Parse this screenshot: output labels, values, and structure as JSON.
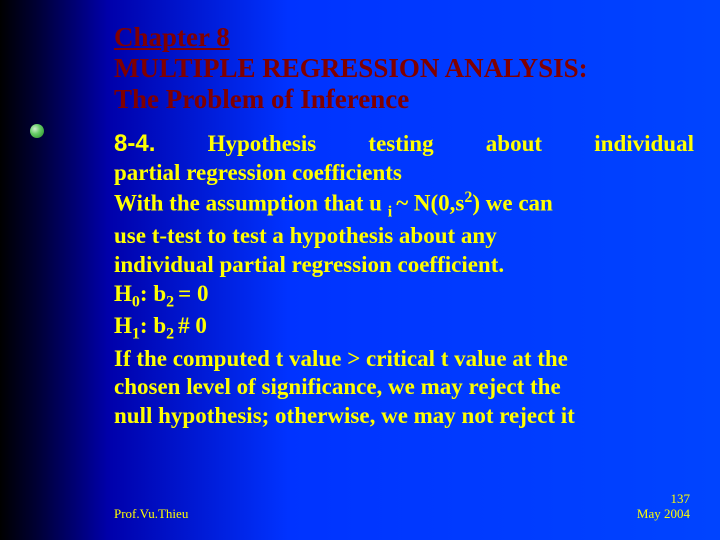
{
  "title": {
    "line1": "Chapter 8",
    "line2": "MULTIPLE REGRESSION ANALYSIS:",
    "line3": "The Problem of Inference"
  },
  "section_number": "8-4.",
  "body": {
    "line1_part1": "Hypothesis testing about",
    "line1_part2": "individual",
    "line2": "partial regression coefficients",
    "line3a": "With the assumption that u ",
    "line3_sub_i": "i ",
    "line3b": "~ N(0,",
    "line3_sigma": "s",
    "line3_sup_2": "2",
    "line3c": ") we can",
    "line4": "use t-test to test a hypothesis about any",
    "line5": "individual partial regression coefficient.",
    "h0a": "H",
    "h0_sub0": "0",
    "h0b": ": ",
    "h0_beta": "b",
    "h0_sub2": "2 ",
    "h0c": "= 0",
    "h1a": "H",
    "h1_sub1": "1",
    "h1b": ": ",
    "h1_beta": "b",
    "h1_sub2": "2 ",
    "h1c": "# 0",
    "line8a": "If the ",
    "line8b": "computed t value > critical t value",
    "line8c": " at the",
    "line9": "chosen level of significance, we may reject the",
    "line10": "null hypothesis; otherwise, we may not reject it"
  },
  "footer": {
    "author": "Prof.Vu.Thieu",
    "page": "137",
    "date": "May 2004"
  },
  "colors": {
    "title_color": "#800000",
    "body_color": "#ffff00",
    "bg_gradient_start": "#000000",
    "bg_gradient_end": "#0044ff"
  }
}
